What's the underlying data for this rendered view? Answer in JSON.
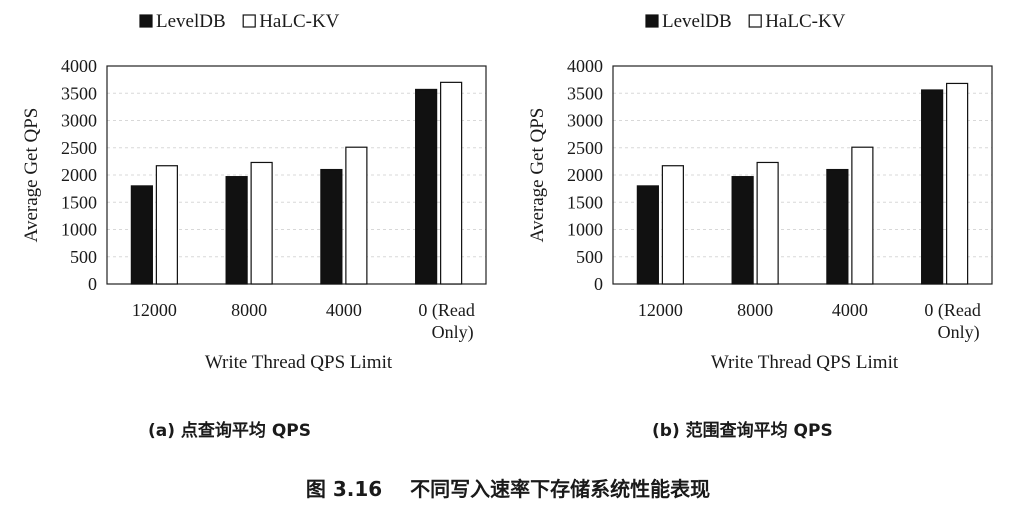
{
  "figure": {
    "title": "图 3.16    不同写入速率下存储系统性能表现"
  },
  "chart_data": [
    {
      "type": "bar",
      "caption": "(a) 点查询平均 QPS",
      "categories": [
        "12000",
        "8000",
        "4000",
        "0 (Read\nOnly)"
      ],
      "series": [
        {
          "name": "LevelDB",
          "values": [
            1800,
            1970,
            2100,
            3570
          ],
          "color": "#111111"
        },
        {
          "name": "HaLC-KV",
          "values": [
            2170,
            2230,
            2510,
            3700
          ],
          "color": "#ffffff"
        }
      ],
      "xlabel": "Write Thread QPS Limit",
      "ylabel": "Average Get QPS",
      "ylim": [
        0,
        4000
      ],
      "yticks": [
        "0",
        "500",
        "1000",
        "1500",
        "2000",
        "2500",
        "3000",
        "3500",
        "4000"
      ],
      "legend": "top",
      "grid": true
    },
    {
      "type": "bar",
      "caption": "(b) 范围查询平均 QPS",
      "categories": [
        "12000",
        "8000",
        "4000",
        "0 (Read\nOnly)"
      ],
      "series": [
        {
          "name": "LevelDB",
          "values": [
            1800,
            1970,
            2100,
            3560
          ],
          "color": "#111111"
        },
        {
          "name": "HaLC-KV",
          "values": [
            2170,
            2230,
            2510,
            3680
          ],
          "color": "#ffffff"
        }
      ],
      "xlabel": "Write Thread QPS Limit",
      "ylabel": "Average Get QPS",
      "ylim": [
        0,
        4000
      ],
      "yticks": [
        "0",
        "500",
        "1000",
        "1500",
        "2000",
        "2500",
        "3000",
        "3500",
        "4000"
      ],
      "legend": "top",
      "grid": true
    }
  ]
}
